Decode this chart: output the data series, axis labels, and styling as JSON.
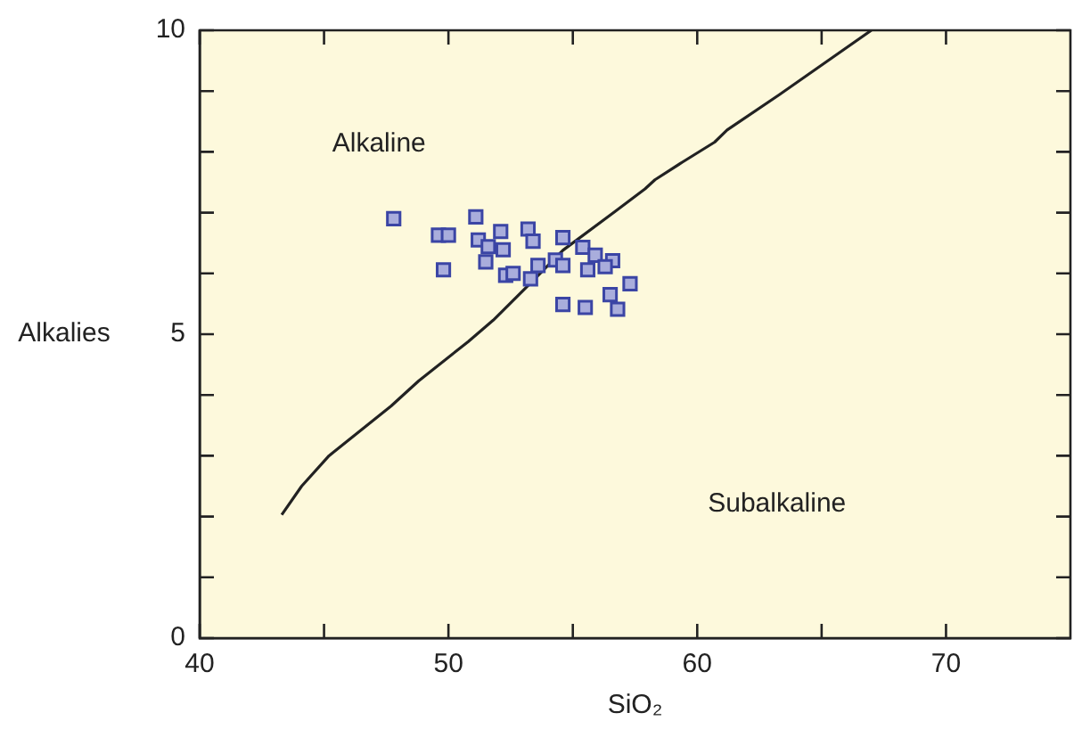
{
  "chart_data": {
    "type": "scatter",
    "xlabel": "SiO₂",
    "ylabel": "Alkalies",
    "annotations": [
      "Alkaline",
      "Subalkaline"
    ],
    "xlim": [
      40,
      75
    ],
    "ylim": [
      0,
      10
    ],
    "xticks": [
      40,
      {
        "value": 45,
        "label": null
      },
      50,
      {
        "value": 55,
        "label": null
      },
      60,
      {
        "value": 65,
        "label": null
      },
      70
    ],
    "yticks": [
      0,
      {
        "value": 1,
        "label": null
      },
      {
        "value": 2,
        "label": null
      },
      {
        "value": 3,
        "label": null
      },
      {
        "value": 4,
        "label": null
      },
      5,
      {
        "value": 6,
        "label": null
      },
      {
        "value": 7,
        "label": null
      },
      {
        "value": 8,
        "label": null
      },
      {
        "value": 9,
        "label": null
      },
      10
    ],
    "grid": false,
    "legend": false,
    "series": [
      {
        "type": "line",
        "color": "#222222",
        "marker": "none",
        "x": [
          43.3,
          44.1,
          45.2,
          47.7,
          48.8,
          50.8,
          51.8,
          53.4,
          54.6,
          56.7,
          57.9,
          58.3,
          59.4,
          60.7,
          61.2,
          63.3,
          67.0
        ],
        "values": [
          2.03,
          2.5,
          3.0,
          3.82,
          4.23,
          4.88,
          5.23,
          5.88,
          6.38,
          7.02,
          7.39,
          7.54,
          7.83,
          8.16,
          8.36,
          8.94,
          10.0
        ]
      },
      {
        "color": "#a9addc",
        "marker": "square",
        "x": [
          47.8,
          49.6,
          50.0,
          51.1,
          51.2,
          51.6,
          52.1,
          52.2,
          51.5,
          49.8,
          52.3,
          52.6,
          53.2,
          53.4,
          54.6,
          53.6,
          54.3,
          54.6,
          53.3,
          55.4,
          55.9,
          56.6,
          56.3,
          55.6,
          57.3,
          56.5,
          54.6,
          55.5,
          56.8
        ],
        "values": [
          6.9,
          6.63,
          6.63,
          6.93,
          6.55,
          6.44,
          6.69,
          6.39,
          6.19,
          6.06,
          5.97,
          6.0,
          6.73,
          6.53,
          6.59,
          6.13,
          6.22,
          6.13,
          5.91,
          6.43,
          6.3,
          6.21,
          6.11,
          6.06,
          5.83,
          5.65,
          5.49,
          5.44,
          5.41
        ]
      }
    ]
  }
}
